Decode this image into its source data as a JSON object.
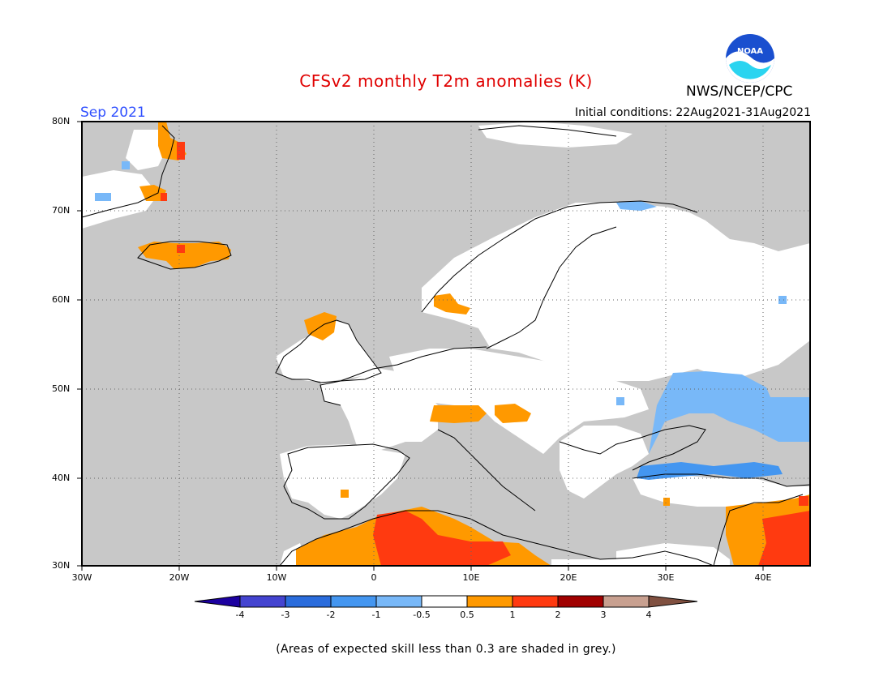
{
  "title": "CFSv2 monthly T2m anomalies (K)",
  "month_label": "Sep 2021",
  "initial_conditions": "Initial conditions: 22Aug2021-31Aug2021",
  "agency": "NWS/NCEP/CPC",
  "logo_text": "NOAA",
  "note": "(Areas of expected skill less than 0.3 are shaded in grey.)",
  "map": {
    "lat_labels": [
      "80N",
      "70N",
      "60N",
      "50N",
      "40N",
      "30N"
    ],
    "lon_labels": [
      "30W",
      "20W",
      "10W",
      "0",
      "10E",
      "20E",
      "30E",
      "40E"
    ],
    "lon_range": [
      -30,
      45
    ],
    "lat_range": [
      30,
      80
    ],
    "grid": "dotted every 10 degrees",
    "background_colors": {
      "low_skill": "#c8c8c8",
      "neutral": "#ffffff"
    }
  },
  "colorbar": {
    "labels": [
      "-4",
      "-3",
      "-2",
      "-1",
      "-0.5",
      "0.5",
      "1",
      "2",
      "3",
      "4"
    ],
    "colors": [
      "#1c00a0",
      "#4444d0",
      "#2a6cdc",
      "#4496f0",
      "#78b8f8",
      "#ffffff",
      "#ff9900",
      "#ff3a10",
      "#a00000",
      "#c8a090",
      "#805040"
    ]
  }
}
